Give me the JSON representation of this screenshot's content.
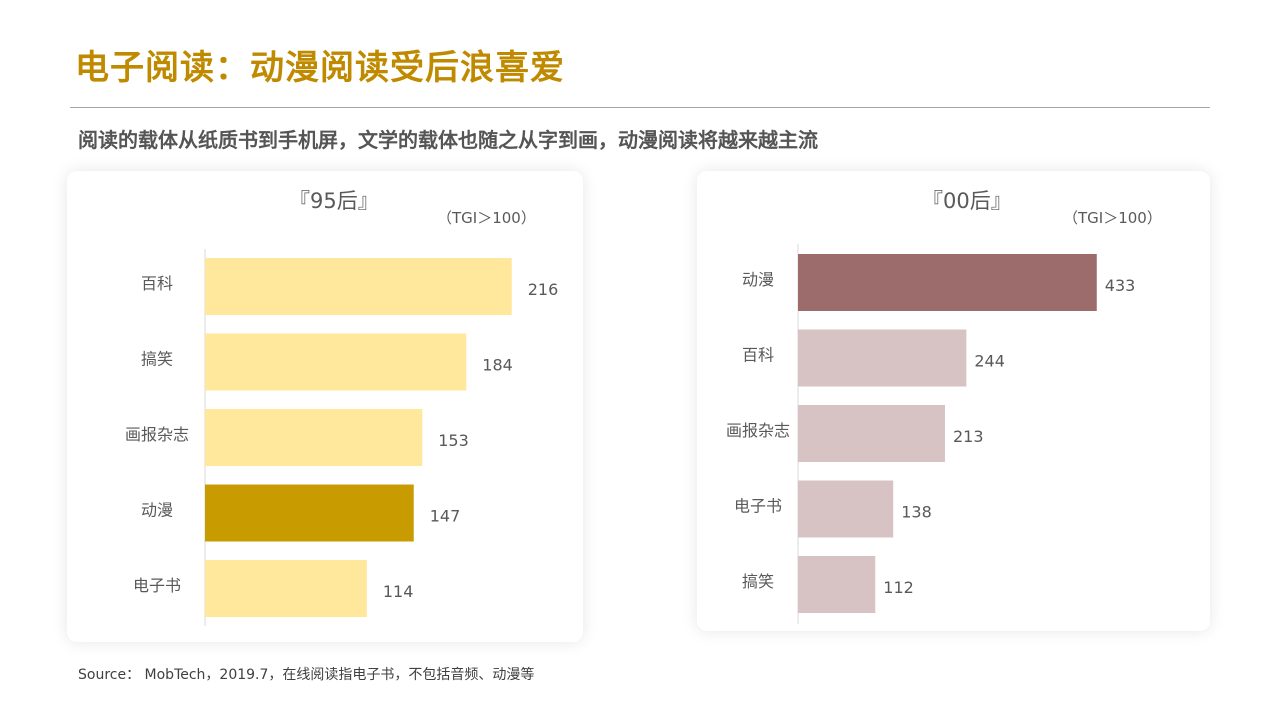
{
  "header": {
    "title": "电子阅读：动漫阅读受后浪喜爱",
    "subtitle": "阅读的载体从纸质书到手机屏，文学的载体也随之从字到画，动漫阅读将越来越主流"
  },
  "chart_data": [
    {
      "type": "bar",
      "orientation": "horizontal",
      "title": "『95后』",
      "unit_label": "（TGI＞100）",
      "categories": [
        "百科",
        "搞笑",
        "画报杂志",
        "动漫",
        "电子书"
      ],
      "values": [
        216,
        184,
        153,
        147,
        114
      ],
      "highlight_index": 3,
      "colors": {
        "bar": "#ffe89c",
        "highlight": "#c89b00"
      },
      "grid": false,
      "legend": "none"
    },
    {
      "type": "bar",
      "orientation": "horizontal",
      "title": "『00后』",
      "unit_label": "（TGI＞100）",
      "categories": [
        "动漫",
        "百科",
        "画报杂志",
        "电子书",
        "搞笑"
      ],
      "values": [
        433,
        244,
        213,
        138,
        112
      ],
      "highlight_index": 0,
      "colors": {
        "bar": "#d7c3c3",
        "highlight": "#9c6b6b"
      },
      "grid": false,
      "legend": "none"
    }
  ],
  "footer": {
    "source": "Source： MobTech，2019.7，在线阅读指电子书，不包括音频、动漫等"
  }
}
